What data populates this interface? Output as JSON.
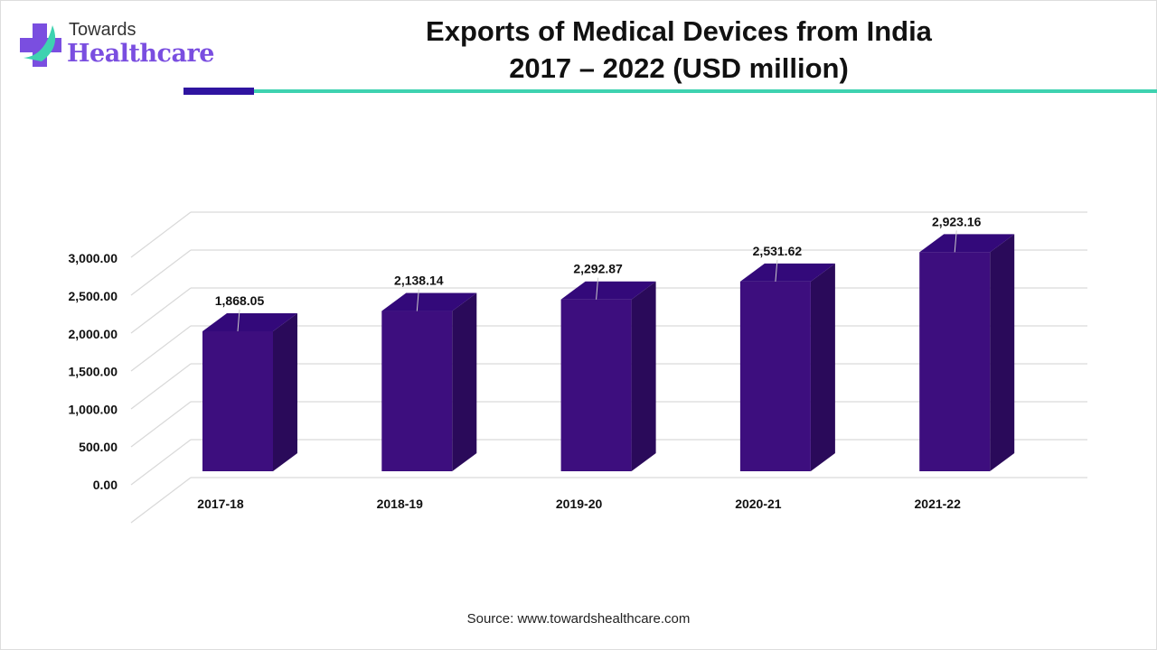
{
  "logo": {
    "line1": "Towards",
    "line2": "Healthcare"
  },
  "title": {
    "line1": "Exports of Medical Devices from India",
    "line2": "2017 – 2022 (USD million)"
  },
  "source": "Source: www.towardshealthcare.com",
  "colors": {
    "bar_front": "#3d0e7e",
    "bar_side": "#2a0a5a",
    "bar_top": "#33097a",
    "accent_purple": "#2f14a0",
    "accent_teal": "#3ed2b0",
    "logo_text": "#7a4ee0"
  },
  "chart_data": {
    "type": "bar",
    "style": "3d-column",
    "categories": [
      "2017-18",
      "2018-19",
      "2019-20",
      "2020-21",
      "2021-22"
    ],
    "values": [
      1868.05,
      2138.14,
      2292.87,
      2531.62,
      2923.16
    ],
    "data_labels": [
      "1,868.05",
      "2,138.14",
      "2,292.87",
      "2,531.62",
      "2,923.16"
    ],
    "y_ticks": [
      "0.00",
      "500.00",
      "1,000.00",
      "1,500.00",
      "2,000.00",
      "2,500.00",
      "3,000.00"
    ],
    "ylim": [
      0,
      3500
    ],
    "grid": true,
    "legend": "none"
  }
}
